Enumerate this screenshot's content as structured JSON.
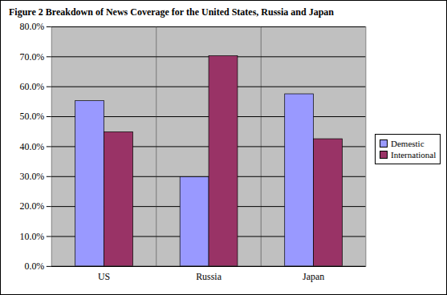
{
  "chart_data": {
    "type": "bar",
    "title": "Figure 2 Breakdown of News Coverage for the United States, Russia and Japan",
    "categories": [
      "US",
      "Russia",
      "Japan"
    ],
    "series": [
      {
        "name": "Demestic",
        "color": "#9999ff",
        "values": [
          55.2,
          29.8,
          57.5
        ]
      },
      {
        "name": "International",
        "color": "#993366",
        "values": [
          44.8,
          70.2,
          42.5
        ]
      }
    ],
    "ylim": [
      0,
      80
    ],
    "yticks": [
      {
        "value": 0,
        "label": "0.0%"
      },
      {
        "value": 10,
        "label": "10.0%"
      },
      {
        "value": 20,
        "label": "20.0%"
      },
      {
        "value": 30,
        "label": "30.0%"
      },
      {
        "value": 40,
        "label": "40.0%"
      },
      {
        "value": 50,
        "label": "50.0%"
      },
      {
        "value": 60,
        "label": "60.0%"
      },
      {
        "value": 70,
        "label": "70.0%"
      },
      {
        "value": 80,
        "label": "80.0%"
      }
    ],
    "grid": true,
    "legend": "right"
  }
}
